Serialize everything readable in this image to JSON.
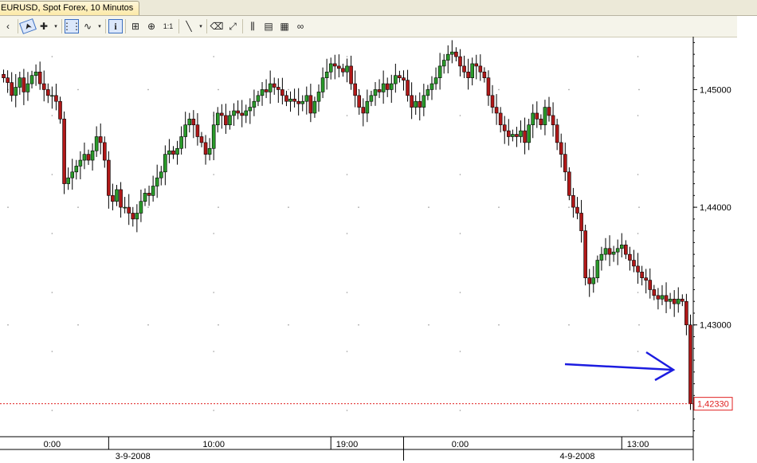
{
  "window": {
    "tab_title": "EURUSD, Spot Forex, 10 Minutos"
  },
  "toolbar": {
    "items": [
      {
        "name": "left-chevron-icon",
        "glyph": "‹"
      },
      {
        "name": "cursor-icon",
        "glyph": "➤"
      },
      {
        "name": "crosshair-icon",
        "glyph": "✚"
      },
      {
        "name": "dropdown-arrow-icon",
        "glyph": "▾"
      },
      {
        "name": "grid-icon",
        "glyph": "⋮⋮"
      },
      {
        "name": "indicator-icon",
        "glyph": "∿"
      },
      {
        "name": "dropdown-arrow-icon",
        "glyph": "▾"
      },
      {
        "name": "info-icon",
        "glyph": "i"
      },
      {
        "name": "zoom-box-icon",
        "glyph": "⊞"
      },
      {
        "name": "zoom-icon",
        "glyph": "⊕"
      },
      {
        "name": "one-to-one-icon",
        "glyph": "1:1"
      },
      {
        "name": "line-tool-icon",
        "glyph": "╲"
      },
      {
        "name": "dropdown-arrow-icon",
        "glyph": "▾"
      },
      {
        "name": "eraser-icon",
        "glyph": "⌫"
      },
      {
        "name": "autoscale-icon",
        "glyph": "⤢"
      },
      {
        "name": "candles-icon",
        "glyph": "⫼"
      },
      {
        "name": "properties-icon",
        "glyph": "▤"
      },
      {
        "name": "templates-icon",
        "glyph": "▦"
      },
      {
        "name": "link-icon",
        "glyph": "∞"
      }
    ]
  },
  "chart_data": {
    "type": "candlestick",
    "symbol": "EURUSD",
    "timeframe": "10 Minutos",
    "y_ticks": [
      "1,45000",
      "1,44000",
      "1,43000"
    ],
    "y_tick_values": [
      1.45,
      1.44,
      1.43
    ],
    "ylim": [
      1.4205,
      1.4545
    ],
    "current_price": 1.4233,
    "current_price_label": "1,42330",
    "x_time_labels": [
      {
        "label": "0:00",
        "index": 12
      },
      {
        "label": "10:00",
        "index": 52
      },
      {
        "label": "19:00",
        "index": 85
      },
      {
        "label": "0:00",
        "index": 113
      },
      {
        "label": "13:00",
        "index": 157
      }
    ],
    "x_dividers": [
      26,
      81,
      99,
      153
    ],
    "x_date_labels": [
      {
        "label": "3-9-2008",
        "index": 32
      },
      {
        "label": "4-9-2008",
        "index": 142
      }
    ],
    "annotation": "blue arrow pointing at final sharp drop",
    "closes": [
      1.451,
      1.4506,
      1.4495,
      1.4502,
      1.451,
      1.4498,
      1.4505,
      1.4512,
      1.4515,
      1.4505,
      1.45,
      1.4495,
      1.4495,
      1.449,
      1.4475,
      1.442,
      1.4425,
      1.443,
      1.4435,
      1.444,
      1.4445,
      1.444,
      1.4448,
      1.446,
      1.4455,
      1.444,
      1.441,
      1.4405,
      1.4415,
      1.44,
      1.44,
      1.4395,
      1.439,
      1.4395,
      1.4405,
      1.4412,
      1.441,
      1.4418,
      1.4425,
      1.443,
      1.4445,
      1.4448,
      1.4445,
      1.445,
      1.446,
      1.447,
      1.4475,
      1.447,
      1.446,
      1.4455,
      1.4445,
      1.445,
      1.447,
      1.448,
      1.4478,
      1.447,
      1.4478,
      1.4482,
      1.448,
      1.4478,
      1.4482,
      1.4485,
      1.449,
      1.4495,
      1.45,
      1.4498,
      1.4505,
      1.4502,
      1.45,
      1.4495,
      1.449,
      1.4492,
      1.449,
      1.4488,
      1.449,
      1.4495,
      1.448,
      1.449,
      1.4498,
      1.451,
      1.4515,
      1.4522,
      1.452,
      1.4518,
      1.4515,
      1.452,
      1.4505,
      1.4495,
      1.4485,
      1.448,
      1.449,
      1.4495,
      1.45,
      1.4498,
      1.4505,
      1.45,
      1.4505,
      1.4512,
      1.451,
      1.4508,
      1.4495,
      1.4485,
      1.449,
      1.4485,
      1.4495,
      1.45,
      1.4505,
      1.451,
      1.452,
      1.4525,
      1.453,
      1.4532,
      1.4528,
      1.452,
      1.4515,
      1.451,
      1.4522,
      1.452,
      1.4515,
      1.451,
      1.4495,
      1.4485,
      1.448,
      1.447,
      1.4465,
      1.446,
      1.4462,
      1.446,
      1.4465,
      1.4455,
      1.447,
      1.448,
      1.4475,
      1.447,
      1.4485,
      1.4478,
      1.447,
      1.4455,
      1.4445,
      1.443,
      1.441,
      1.44,
      1.4395,
      1.438,
      1.434,
      1.4335,
      1.434,
      1.4355,
      1.436,
      1.4365,
      1.436,
      1.4362,
      1.4365,
      1.4368,
      1.436,
      1.4355,
      1.435,
      1.4345,
      1.434,
      1.4338,
      1.433,
      1.4325,
      1.4322,
      1.4325,
      1.432,
      1.4322,
      1.4318,
      1.4322,
      1.432,
      1.43,
      1.4233
    ]
  }
}
